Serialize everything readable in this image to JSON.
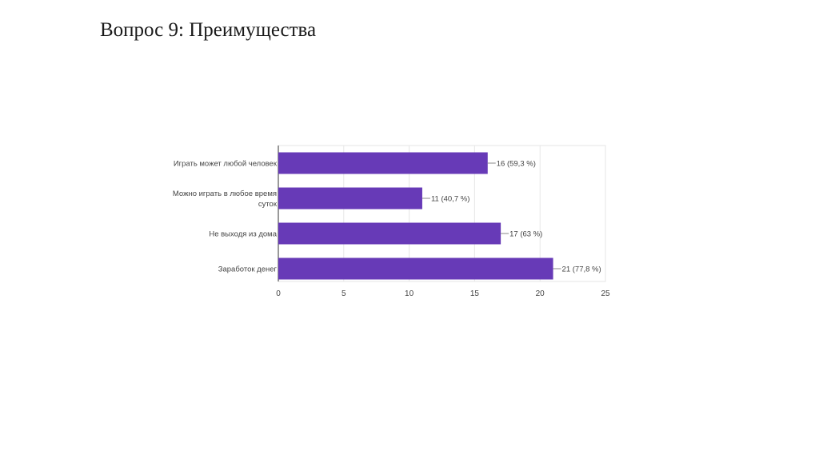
{
  "slide": {
    "title": "Вопрос 9: Преимущества"
  },
  "colors": {
    "bar": "#673ab7",
    "grid": "#e6e6e6",
    "axis": "#333333",
    "label": "#444444"
  },
  "chart_data": {
    "type": "bar",
    "orientation": "horizontal",
    "categories": [
      [
        "Играть может любой человек"
      ],
      [
        "Можно играть в любое время",
        "суток"
      ],
      [
        "Не выходя из дома"
      ],
      [
        "Заработок денег"
      ]
    ],
    "values": [
      16,
      11,
      17,
      21
    ],
    "value_labels": [
      "16 (59,3 %)",
      "11 (40,7 %)",
      "17 (63 %)",
      "21 (77,8 %)"
    ],
    "xticks": [
      "0",
      "5",
      "10",
      "15",
      "20",
      "25"
    ],
    "xlim": [
      0,
      25
    ],
    "grid": true,
    "legend": "none"
  }
}
